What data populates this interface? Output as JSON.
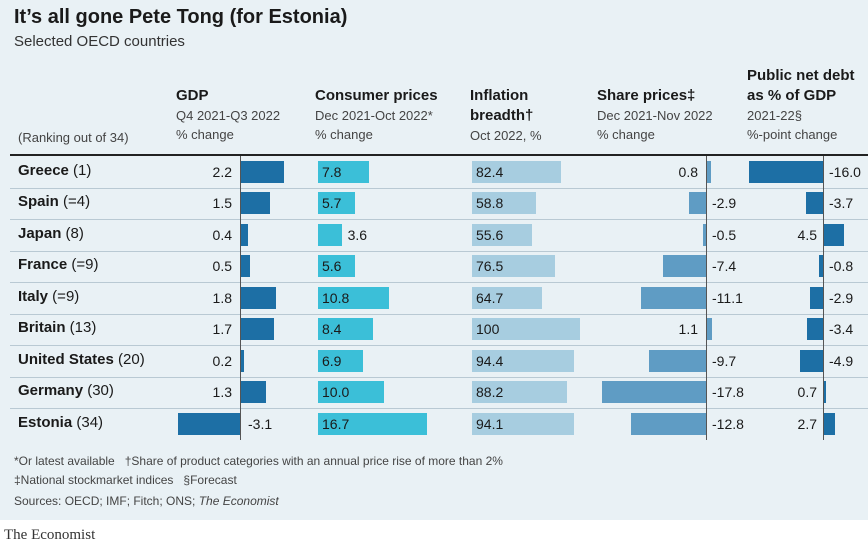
{
  "title": "It’s all gone Pete Tong (for Estonia)",
  "subtitle": "Selected OECD countries",
  "ranking_note": "(Ranking out of 34)",
  "columns": [
    {
      "key": "gdp",
      "title_lines": [
        "GDP"
      ],
      "sub_lines": [
        "Q4 2021-Q3 2022",
        "% change"
      ]
    },
    {
      "key": "cpi",
      "title_lines": [
        "Consumer prices"
      ],
      "sub_lines": [
        "Dec 2021-Oct 2022*",
        "% change"
      ]
    },
    {
      "key": "breadth",
      "title_lines": [
        "Inflation",
        "breadth†"
      ],
      "sub_lines": [
        "Oct 2022, %"
      ]
    },
    {
      "key": "shares",
      "title_lines": [
        "Share prices‡"
      ],
      "sub_lines": [
        "Dec 2021-Nov 2022",
        "% change"
      ]
    },
    {
      "key": "debt",
      "title_lines": [
        "Public net debt",
        "as % of GDP"
      ],
      "sub_lines": [
        "2021-22§",
        "%-point change"
      ]
    }
  ],
  "chart_data": {
    "type": "table",
    "title": "It’s all gone Pete Tong (for Estonia)",
    "subtitle": "Selected OECD countries",
    "rows": [
      {
        "country": "Greece",
        "rank": "(1)",
        "gdp": 2.2,
        "cpi": 7.8,
        "breadth": 82.4,
        "shares": 0.8,
        "debt": -16.0,
        "labels": {
          "gdp": "2.2",
          "cpi": "7.8",
          "breadth": "82.4",
          "shares": "0.8",
          "debt": "-16.0"
        }
      },
      {
        "country": "Spain",
        "rank": "(=4)",
        "gdp": 1.5,
        "cpi": 5.7,
        "breadth": 58.8,
        "shares": -2.9,
        "debt": -3.7,
        "labels": {
          "gdp": "1.5",
          "cpi": "5.7",
          "breadth": "58.8",
          "shares": "-2.9",
          "debt": "-3.7"
        }
      },
      {
        "country": "Japan",
        "rank": "(8)",
        "gdp": 0.4,
        "cpi": 3.6,
        "breadth": 55.6,
        "shares": -0.5,
        "debt": 4.5,
        "labels": {
          "gdp": "0.4",
          "cpi": "3.6",
          "breadth": "55.6",
          "shares": "-0.5",
          "debt": "4.5"
        }
      },
      {
        "country": "France",
        "rank": "(=9)",
        "gdp": 0.5,
        "cpi": 5.6,
        "breadth": 76.5,
        "shares": -7.4,
        "debt": -0.8,
        "labels": {
          "gdp": "0.5",
          "cpi": "5.6",
          "breadth": "76.5",
          "shares": "-7.4",
          "debt": "-0.8"
        }
      },
      {
        "country": "Italy",
        "rank": "(=9)",
        "gdp": 1.8,
        "cpi": 10.8,
        "breadth": 64.7,
        "shares": -11.1,
        "debt": -2.9,
        "labels": {
          "gdp": "1.8",
          "cpi": "10.8",
          "breadth": "64.7",
          "shares": "-11.1",
          "debt": "-2.9"
        }
      },
      {
        "country": "Britain",
        "rank": "(13)",
        "gdp": 1.7,
        "cpi": 8.4,
        "breadth": 100,
        "shares": 1.1,
        "debt": -3.4,
        "labels": {
          "gdp": "1.7",
          "cpi": "8.4",
          "breadth": "100",
          "shares": "1.1",
          "debt": "-3.4"
        }
      },
      {
        "country": "United States",
        "rank": "(20)",
        "gdp": 0.2,
        "cpi": 6.9,
        "breadth": 94.4,
        "shares": -9.7,
        "debt": -4.9,
        "labels": {
          "gdp": "0.2",
          "cpi": "6.9",
          "breadth": "94.4",
          "shares": "-9.7",
          "debt": "-4.9"
        }
      },
      {
        "country": "Germany",
        "rank": "(30)",
        "gdp": 1.3,
        "cpi": 10.0,
        "breadth": 88.2,
        "shares": -17.8,
        "debt": 0.7,
        "labels": {
          "gdp": "1.3",
          "cpi": "10.0",
          "breadth": "88.2",
          "shares": "-17.8",
          "debt": "0.7"
        }
      },
      {
        "country": "Estonia",
        "rank": "(34)",
        "gdp": -3.1,
        "cpi": 16.7,
        "breadth": 94.1,
        "shares": -12.8,
        "debt": 2.7,
        "labels": {
          "gdp": "-3.1",
          "cpi": "16.7",
          "breadth": "94.1",
          "shares": "-12.8",
          "debt": "2.7"
        }
      }
    ]
  },
  "colors": {
    "gdp": "#1d6fa5",
    "cpi": "#3bbfd8",
    "breadth": "#a7cde0",
    "shares": "#5f9cc4",
    "debt": "#1d6fa5"
  },
  "footnotes": {
    "line1a": "*Or latest available",
    "line1b": "†Share of product categories with an annual price rise of more than 2%",
    "line2a": "‡National stockmarket indices",
    "line2b": "§Forecast",
    "sources_prefix": "Sources: OECD; IMF; Fitch; ONS; ",
    "sources_italic": "The Economist"
  },
  "brand": "The Economist"
}
